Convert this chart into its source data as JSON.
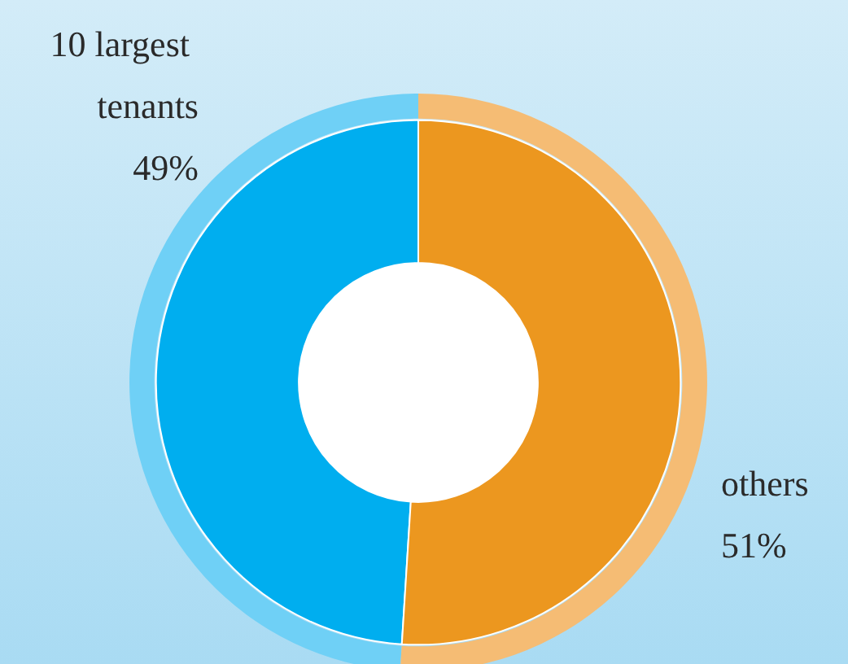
{
  "chart_data": {
    "type": "donut",
    "categories": [
      "10 largest tenants",
      "others"
    ],
    "series": [
      {
        "colors": [
          "#00aeef",
          "#ec971f"
        ],
        "values": [
          49,
          51
        ],
        "value_labels": [
          "49%",
          "51%"
        ]
      },
      {
        "colors": [
          "#6fd0f6",
          "#f5bc74"
        ],
        "values": [
          49,
          51
        ]
      }
    ],
    "legend": false
  }
}
